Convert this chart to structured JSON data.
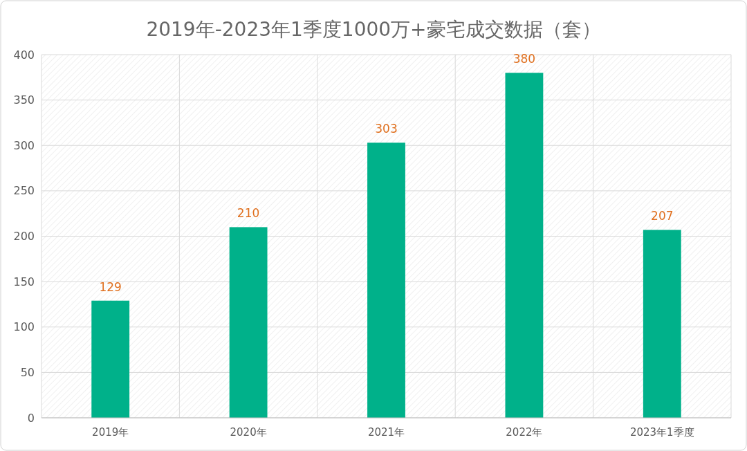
{
  "chart_data": {
    "type": "bar",
    "title": "2019年-2023年1季度1000万+豪宅成交数据（套）",
    "categories": [
      "2019年",
      "2020年",
      "2021年",
      "2022年",
      "2023年1季度"
    ],
    "values": [
      129,
      210,
      303,
      380,
      207
    ],
    "color": "#00b18a",
    "ylim": [
      0,
      400
    ],
    "yticks": [
      0,
      50,
      100,
      150,
      200,
      250,
      300,
      350,
      400
    ],
    "grid": true,
    "data_labels": true
  }
}
